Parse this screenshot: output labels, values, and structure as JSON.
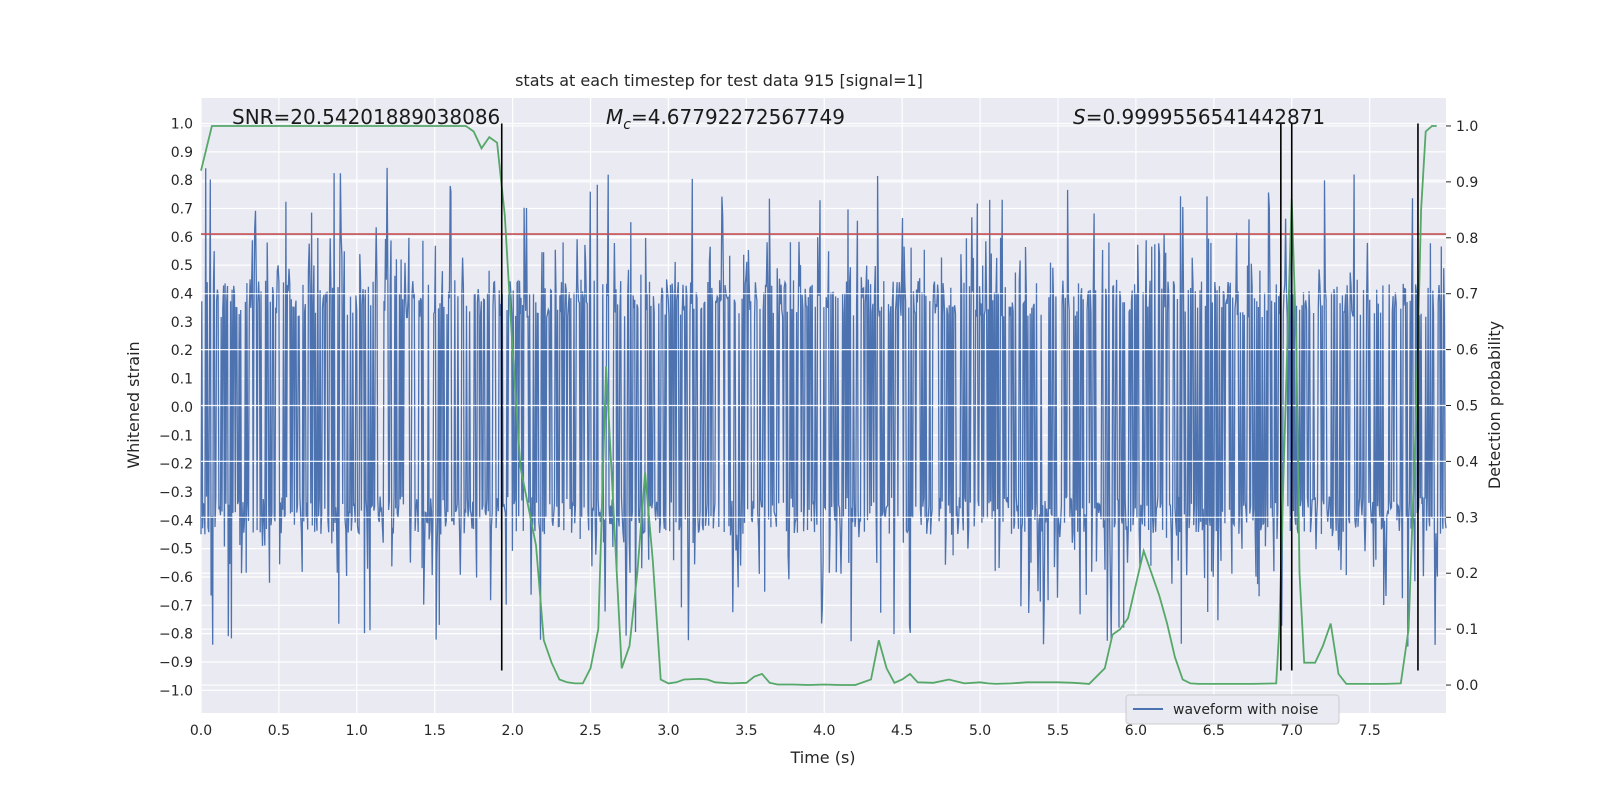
{
  "chart_data": {
    "type": "line",
    "title": "stats at each timestep for test data 915 [signal=1]",
    "xlabel": "Time (s)",
    "ylabel_left": "Whitened strain",
    "ylabel_right": "Detection probability",
    "xlim": [
      0,
      7.99
    ],
    "ylim_left": [
      -1.08,
      1.09
    ],
    "ylim_right": [
      -0.05,
      1.05
    ],
    "x_ticks": [
      0.0,
      0.5,
      1.0,
      1.5,
      2.0,
      2.5,
      3.0,
      3.5,
      4.0,
      4.5,
      5.0,
      5.5,
      6.0,
      6.5,
      7.0,
      7.5
    ],
    "x_tick_labels": [
      "0.0",
      "0.5",
      "1.0",
      "1.5",
      "2.0",
      "2.5",
      "3.0",
      "3.5",
      "4.0",
      "4.5",
      "5.0",
      "5.5",
      "6.0",
      "6.5",
      "7.0",
      "7.5"
    ],
    "y_left_ticks": [
      1.0,
      0.9,
      0.8,
      0.7,
      0.6,
      0.5,
      0.4,
      0.3,
      0.2,
      0.1,
      0.0,
      -0.1,
      -0.2,
      -0.3,
      -0.4,
      -0.5,
      -0.6,
      -0.7,
      -0.8,
      -0.9,
      -1.0
    ],
    "y_left_tick_labels": [
      "1.0",
      "0.9",
      "0.8",
      "0.7",
      "0.6",
      "0.5",
      "0.4",
      "0.3",
      "0.2",
      "0.1",
      "0.0",
      "−0.1",
      "−0.2",
      "−0.3",
      "−0.4",
      "−0.5",
      "−0.6",
      "−0.7",
      "−0.8",
      "−0.9",
      "−1.0"
    ],
    "y_right_ticks": [
      1.0,
      0.9,
      0.8,
      0.7,
      0.6,
      0.5,
      0.4,
      0.3,
      0.2,
      0.1,
      0.0
    ],
    "y_right_tick_labels": [
      "1.0",
      "0.9",
      "0.8",
      "0.7",
      "0.6",
      "0.5",
      "0.4",
      "0.3",
      "0.2",
      "0.1",
      "0.0"
    ],
    "grid": true,
    "background": "#eaeaf2",
    "series": [
      {
        "name": "waveform with noise",
        "axis": "left",
        "color": "#4c72b0",
        "kind": "dense-noise",
        "description_values": {
          "typical_range": [
            -0.45,
            0.45
          ],
          "max": 0.86,
          "min": -0.91,
          "sample_count": 1600
        }
      },
      {
        "name": "detection probability",
        "axis": "right",
        "color": "#55a868",
        "x": [
          0.0,
          0.07,
          0.15,
          0.3,
          0.5,
          0.8,
          1.0,
          1.3,
          1.6,
          1.7,
          1.75,
          1.8,
          1.85,
          1.9,
          1.95,
          2.0,
          2.05,
          2.1,
          2.15,
          2.2,
          2.25,
          2.3,
          2.35,
          2.4,
          2.45,
          2.5,
          2.55,
          2.6,
          2.65,
          2.7,
          2.75,
          2.8,
          2.85,
          2.9,
          2.95,
          3.0,
          3.05,
          3.1,
          3.2,
          3.25,
          3.3,
          3.4,
          3.5,
          3.55,
          3.6,
          3.65,
          3.7,
          3.75,
          3.8,
          3.9,
          4.0,
          4.1,
          4.2,
          4.3,
          4.35,
          4.4,
          4.45,
          4.5,
          4.55,
          4.6,
          4.7,
          4.8,
          4.9,
          5.0,
          5.05,
          5.1,
          5.2,
          5.3,
          5.5,
          5.6,
          5.7,
          5.8,
          5.85,
          5.9,
          5.95,
          6.0,
          6.05,
          6.1,
          6.15,
          6.2,
          6.25,
          6.3,
          6.35,
          6.4,
          6.45,
          6.5,
          6.6,
          6.75,
          6.9,
          6.92,
          6.95,
          7.0,
          7.03,
          7.05,
          7.08,
          7.1,
          7.15,
          7.2,
          7.25,
          7.3,
          7.35,
          7.4,
          7.5,
          7.6,
          7.7,
          7.75,
          7.8,
          7.83,
          7.86,
          7.9,
          7.93
        ],
        "values": [
          0.92,
          1.0,
          1.0,
          1.0,
          1.0,
          1.0,
          1.0,
          1.0,
          1.0,
          1.0,
          0.99,
          0.96,
          0.98,
          0.97,
          0.84,
          0.6,
          0.39,
          0.32,
          0.25,
          0.08,
          0.04,
          0.01,
          0.005,
          0.003,
          0.003,
          0.03,
          0.1,
          0.57,
          0.3,
          0.03,
          0.07,
          0.2,
          0.38,
          0.22,
          0.01,
          0.003,
          0.005,
          0.01,
          0.011,
          0.01,
          0.005,
          0.003,
          0.004,
          0.015,
          0.02,
          0.004,
          0.001,
          0.001,
          0.001,
          0.0,
          0.001,
          0.0,
          0.0,
          0.01,
          0.08,
          0.03,
          0.004,
          0.01,
          0.02,
          0.005,
          0.004,
          0.01,
          0.003,
          0.005,
          0.003,
          0.002,
          0.003,
          0.005,
          0.005,
          0.004,
          0.002,
          0.03,
          0.09,
          0.1,
          0.12,
          0.18,
          0.24,
          0.2,
          0.16,
          0.11,
          0.05,
          0.01,
          0.003,
          0.002,
          0.002,
          0.002,
          0.002,
          0.002,
          0.003,
          0.1,
          0.4,
          0.87,
          0.6,
          0.2,
          0.04,
          0.04,
          0.04,
          0.07,
          0.11,
          0.02,
          0.002,
          0.002,
          0.002,
          0.002,
          0.003,
          0.1,
          0.5,
          0.85,
          0.99,
          1.0,
          1.0
        ]
      },
      {
        "name": "threshold",
        "axis": "left",
        "color": "#c44e52",
        "kind": "hline",
        "value": 0.61
      }
    ],
    "vlines": {
      "color": "#000000",
      "axis": "left",
      "ymin": -0.93,
      "ymax": 1.0,
      "x": [
        1.93,
        6.93,
        7.0,
        7.81
      ]
    },
    "annotations": {
      "snr": "SNR=20.54201889038086",
      "mc_symbol": "M",
      "mc_sub": "c",
      "mc_value": "=4.67792272567749",
      "s_symbol": "S",
      "s_value": "=0.9999556541442871"
    },
    "legend": {
      "position": "lower-right",
      "entries": [
        {
          "label": "waveform with noise",
          "color": "#4c72b0"
        }
      ]
    }
  }
}
